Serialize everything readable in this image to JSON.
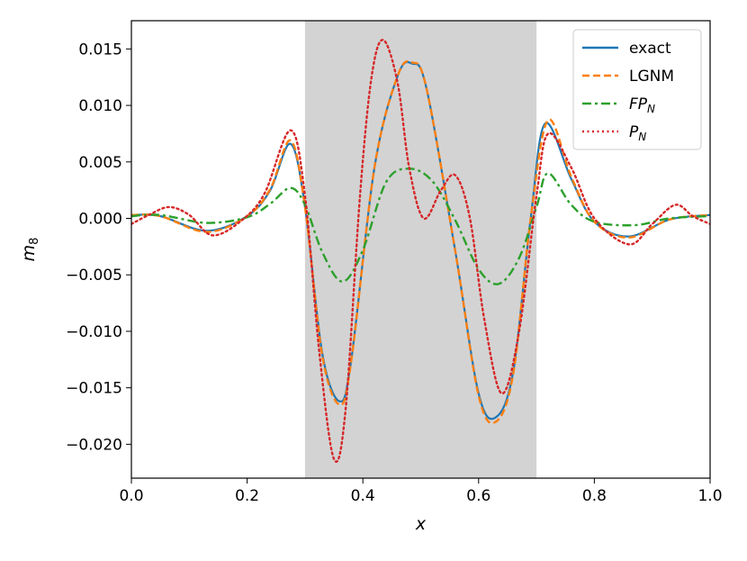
{
  "chart_data": {
    "type": "line",
    "xlabel": "x",
    "ylabel_main": "m",
    "ylabel_sub": "8",
    "xlim": [
      0.0,
      1.0
    ],
    "ylim": [
      -0.023,
      0.0175
    ],
    "x_ticks": [
      0.0,
      0.2,
      0.4,
      0.6,
      0.8,
      1.0
    ],
    "x_tick_labels": [
      "0.0",
      "0.2",
      "0.4",
      "0.6",
      "0.8",
      "1.0"
    ],
    "y_ticks": [
      0.015,
      0.01,
      0.005,
      0.0,
      -0.005,
      -0.01,
      -0.015,
      -0.02
    ],
    "y_tick_labels": [
      "0.015",
      "0.010",
      "0.005",
      "0.000",
      "−0.005",
      "−0.010",
      "−0.015",
      "−0.020"
    ],
    "shaded_region": {
      "x_start": 0.3,
      "x_end": 0.7,
      "color": "#d3d3d3"
    },
    "grid": false,
    "legend_position": "top-right",
    "series": [
      {
        "name": "exact",
        "name_main": "exact",
        "name_sub": "",
        "italic": false,
        "color": "#1f77b4",
        "dash": "solid",
        "x": [
          0.0,
          0.05,
          0.13,
          0.2,
          0.24,
          0.275,
          0.3,
          0.33,
          0.36,
          0.38,
          0.42,
          0.46,
          0.485,
          0.51,
          0.56,
          0.6,
          0.63,
          0.66,
          0.69,
          0.715,
          0.76,
          0.8,
          0.86,
          0.93,
          1.0
        ],
        "y": [
          0.0003,
          0.0002,
          -0.0011,
          0.0002,
          0.0025,
          0.0066,
          0.001,
          -0.012,
          -0.0162,
          -0.0125,
          0.0045,
          0.0126,
          0.0137,
          0.0115,
          -0.003,
          -0.0155,
          -0.0176,
          -0.0135,
          0.0,
          0.0084,
          0.0035,
          -0.0003,
          -0.0016,
          -0.0001,
          0.0003
        ]
      },
      {
        "name": "LGNM",
        "name_main": "LGNM",
        "name_sub": "",
        "italic": false,
        "color": "#ff7f0e",
        "dash": "dashed",
        "x": [
          0.0,
          0.05,
          0.13,
          0.2,
          0.24,
          0.275,
          0.3,
          0.33,
          0.36,
          0.38,
          0.42,
          0.46,
          0.485,
          0.51,
          0.56,
          0.6,
          0.63,
          0.66,
          0.69,
          0.72,
          0.76,
          0.8,
          0.86,
          0.93,
          1.0
        ],
        "y": [
          0.0003,
          0.0002,
          -0.0012,
          0.0002,
          0.0026,
          0.0069,
          0.001,
          -0.0122,
          -0.0165,
          -0.0126,
          0.0045,
          0.0126,
          0.0138,
          0.0115,
          -0.003,
          -0.0157,
          -0.018,
          -0.0137,
          0.0,
          0.0087,
          0.0037,
          -0.0003,
          -0.0017,
          -0.0001,
          0.0003
        ]
      },
      {
        "name": "FP_N",
        "name_main": "FP",
        "name_sub": "N",
        "italic": true,
        "color": "#2ca02c",
        "dash": "dashdot",
        "x": [
          0.0,
          0.05,
          0.13,
          0.2,
          0.24,
          0.275,
          0.3,
          0.33,
          0.365,
          0.4,
          0.44,
          0.48,
          0.52,
          0.56,
          0.6,
          0.635,
          0.67,
          0.7,
          0.72,
          0.76,
          0.8,
          0.87,
          0.93,
          1.0
        ],
        "y": [
          0.0002,
          0.0003,
          -0.0004,
          0.0001,
          0.0013,
          0.0027,
          0.0012,
          -0.003,
          -0.0056,
          -0.0028,
          0.0032,
          0.0044,
          0.0033,
          -0.0002,
          -0.0045,
          -0.0058,
          -0.0035,
          0.001,
          0.004,
          0.0012,
          -0.0003,
          -0.0006,
          0.0,
          0.0002
        ]
      },
      {
        "name": "P_N",
        "name_main": "P",
        "name_sub": "N",
        "italic": true,
        "color": "#d62728",
        "dash": "dotted",
        "x": [
          0.0,
          0.03,
          0.065,
          0.1,
          0.14,
          0.19,
          0.23,
          0.275,
          0.3,
          0.325,
          0.35,
          0.37,
          0.395,
          0.415,
          0.435,
          0.46,
          0.48,
          0.505,
          0.535,
          0.56,
          0.585,
          0.61,
          0.64,
          0.67,
          0.7,
          0.72,
          0.76,
          0.8,
          0.86,
          0.9,
          0.94,
          0.97,
          1.0
        ],
        "y": [
          -0.0005,
          0.0003,
          0.001,
          0.0003,
          -0.0015,
          -0.0002,
          0.0022,
          0.0078,
          0.002,
          -0.012,
          -0.0213,
          -0.017,
          0.002,
          0.0125,
          0.0158,
          0.012,
          0.0045,
          0.0,
          0.0025,
          0.0038,
          0.0,
          -0.009,
          -0.0155,
          -0.01,
          0.002,
          0.0075,
          0.0045,
          0.0,
          -0.0023,
          -0.0005,
          0.0012,
          0.0002,
          -0.0005
        ]
      }
    ]
  }
}
